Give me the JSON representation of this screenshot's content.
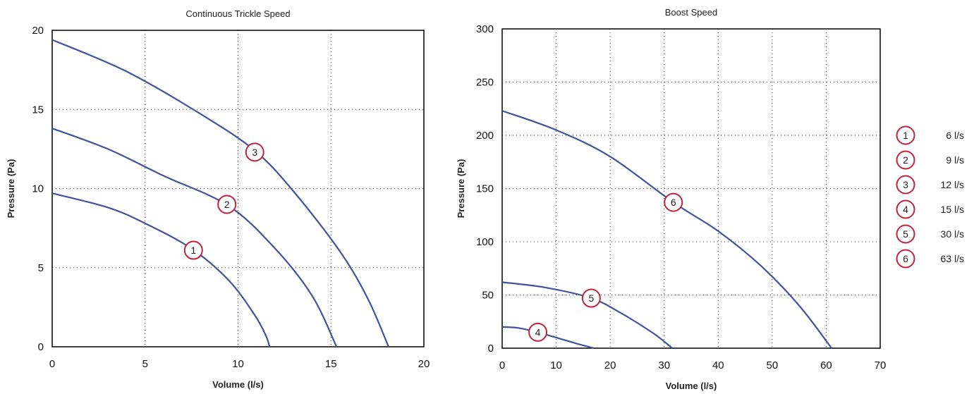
{
  "chart_data": [
    {
      "type": "line",
      "title": "Continuous Trickle Speed",
      "xlabel": "Volume (l/s)",
      "ylabel": "Pressure (Pa)",
      "xlim": [
        0,
        20
      ],
      "ylim": [
        0,
        20
      ],
      "xticks": [
        0,
        5,
        10,
        15,
        20
      ],
      "yticks": [
        0,
        5,
        10,
        15,
        20
      ],
      "grid": true,
      "series": [
        {
          "name": "1",
          "x": [
            0,
            3,
            5,
            7.5,
            9.5,
            10.9,
            11.5,
            11.7
          ],
          "y": [
            9.7,
            8.8,
            7.8,
            6.2,
            4.2,
            2.0,
            0.7,
            0
          ],
          "marker": {
            "label": "1",
            "x": 7.6,
            "y": 6.1
          }
        },
        {
          "name": "2",
          "x": [
            0,
            3,
            6,
            9.5,
            12,
            14,
            15.3
          ],
          "y": [
            13.8,
            12.5,
            10.8,
            8.9,
            6.2,
            3.2,
            0
          ],
          "marker": {
            "label": "2",
            "x": 9.4,
            "y": 9.0
          }
        },
        {
          "name": "3",
          "x": [
            0,
            4,
            8,
            10.9,
            13,
            15.5,
            17,
            18.1
          ],
          "y": [
            19.4,
            17.4,
            14.7,
            12.4,
            9.8,
            6.0,
            3.0,
            0
          ],
          "marker": {
            "label": "3",
            "x": 10.9,
            "y": 12.3
          }
        }
      ]
    },
    {
      "type": "line",
      "title": "Boost Speed",
      "xlabel": "Volume (l/s)",
      "ylabel": "Pressure (Pa)",
      "xlim": [
        0,
        70
      ],
      "ylim": [
        0,
        300
      ],
      "xticks": [
        0,
        10,
        20,
        30,
        40,
        50,
        60,
        70
      ],
      "yticks": [
        0,
        50,
        100,
        150,
        200,
        250,
        300
      ],
      "grid": true,
      "series": [
        {
          "name": "4",
          "x": [
            0,
            3,
            6.5,
            10,
            14,
            17
          ],
          "y": [
            20,
            19,
            15,
            10,
            4,
            0
          ],
          "marker": {
            "label": "4",
            "x": 6.6,
            "y": 15
          }
        },
        {
          "name": "5",
          "x": [
            0,
            8,
            16.5,
            22,
            28,
            31.5
          ],
          "y": [
            62,
            57,
            47,
            33,
            14,
            0
          ],
          "marker": {
            "label": "5",
            "x": 16.5,
            "y": 47
          }
        },
        {
          "name": "6",
          "x": [
            0,
            10,
            20,
            31.7,
            40,
            48,
            55,
            61
          ],
          "y": [
            223,
            205,
            180,
            137,
            110,
            77,
            40,
            0
          ],
          "marker": {
            "label": "6",
            "x": 31.7,
            "y": 137
          }
        }
      ]
    }
  ],
  "legend": {
    "items": [
      {
        "marker": "1",
        "label": "6 l/s"
      },
      {
        "marker": "2",
        "label": "9 l/s"
      },
      {
        "marker": "3",
        "label": "12 l/s"
      },
      {
        "marker": "4",
        "label": "15 l/s"
      },
      {
        "marker": "5",
        "label": "30 l/s"
      },
      {
        "marker": "6",
        "label": "63 l/s"
      }
    ]
  },
  "colors": {
    "curve": "#4153a0",
    "marker": "#c0243a"
  }
}
